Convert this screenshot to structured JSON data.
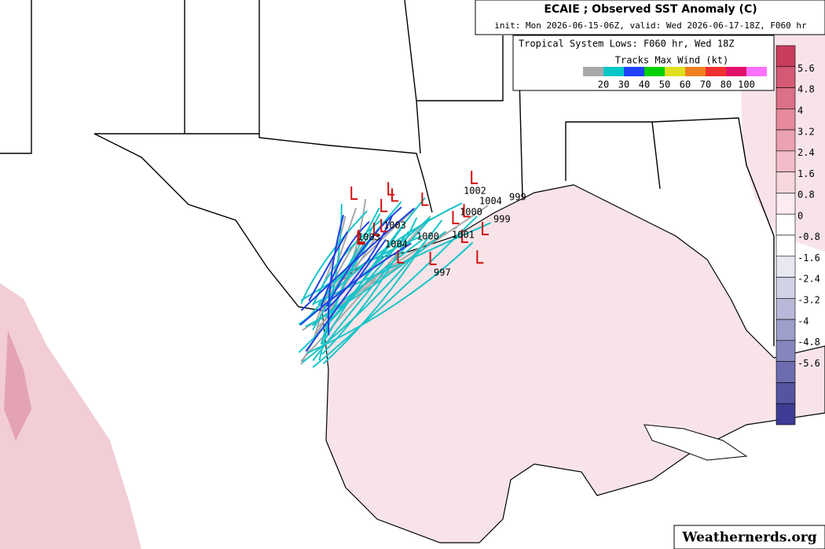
{
  "header": {
    "title": "ECAIE ; Observed SST Anomaly (C)",
    "subtitle": "init: Mon 2026-06-15-06Z, valid: Wed 2026-06-17-18Z, F060 hr"
  },
  "lows_legend": {
    "title": "Tropical System Lows: F060 hr, Wed 18Z",
    "tracks_title": "Tracks Max Wind (kt)",
    "labels": [
      "20",
      "30",
      "40",
      "50",
      "60",
      "70",
      "80",
      "100"
    ],
    "colors": [
      "#a8a8a8",
      "#00c8c8",
      "#2040ff",
      "#00d000",
      "#e0e020",
      "#f08020",
      "#f03030",
      "#e0106a",
      "#ff70ff"
    ]
  },
  "colorbar": {
    "labels": [
      "5.6",
      "4.8",
      "4",
      "3.2",
      "2.4",
      "1.6",
      "0.8",
      "0",
      "-0.8",
      "-1.6",
      "-2.4",
      "-3.2",
      "-4",
      "-4.8",
      "-5.6"
    ]
  },
  "pressure_labels": [
    "1002",
    "999",
    "1004",
    "1000",
    "999",
    "1001",
    "997",
    "1004",
    "1003",
    "1003",
    "1000"
  ],
  "watermark": "Weathernerds.org"
}
